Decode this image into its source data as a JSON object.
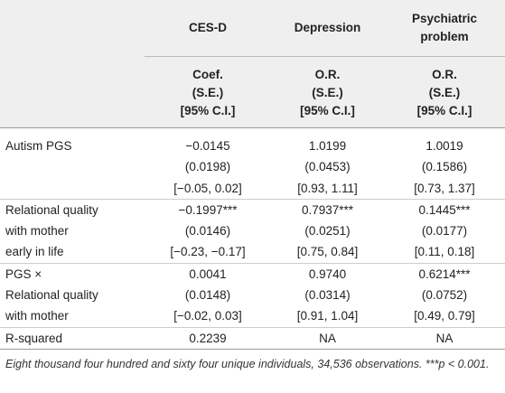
{
  "header": {
    "columns": [
      "CES-D",
      "Depression",
      "Psychiatric problem"
    ],
    "subheaders": [
      [
        "Coef.",
        "(S.E.)",
        "[95% C.I.]"
      ],
      [
        "O.R.",
        "(S.E.)",
        "[95% C.I.]"
      ],
      [
        "O.R.",
        "(S.E.)",
        "[95% C.I.]"
      ]
    ]
  },
  "table": {
    "rows": [
      {
        "label": [
          "Autism PGS"
        ],
        "cells": [
          [
            "−0.0145",
            "(0.0198)",
            "[−0.05, 0.02]"
          ],
          [
            "1.0199",
            "(0.0453)",
            "[0.93, 1.11]"
          ],
          [
            "1.0019",
            "(0.1586)",
            "[0.73, 1.37]"
          ]
        ]
      },
      {
        "label": [
          "Relational quality",
          "with mother",
          "early in life"
        ],
        "cells": [
          [
            "−0.1997***",
            "(0.0146)",
            "[−0.23, −0.17]"
          ],
          [
            "0.7937***",
            "(0.0251)",
            "[0.75, 0.84]"
          ],
          [
            "0.1445***",
            "(0.0177)",
            "[0.11, 0.18]"
          ]
        ]
      },
      {
        "label": [
          "PGS ×",
          "Relational quality",
          "with mother"
        ],
        "cells": [
          [
            "0.0041",
            "(0.0148)",
            "[−0.02, 0.03]"
          ],
          [
            "0.9740",
            "(0.0314)",
            "[0.91, 1.04]"
          ],
          [
            "0.6214***",
            "(0.0752)",
            "[0.49, 0.79]"
          ]
        ]
      },
      {
        "label": [
          "R-squared"
        ],
        "cells": [
          [
            "0.2239"
          ],
          [
            "NA"
          ],
          [
            "NA"
          ]
        ]
      }
    ]
  },
  "footnote": "Eight thousand four hundred and sixty four unique individuals, 34,536 observations. ***p < 0.001."
}
